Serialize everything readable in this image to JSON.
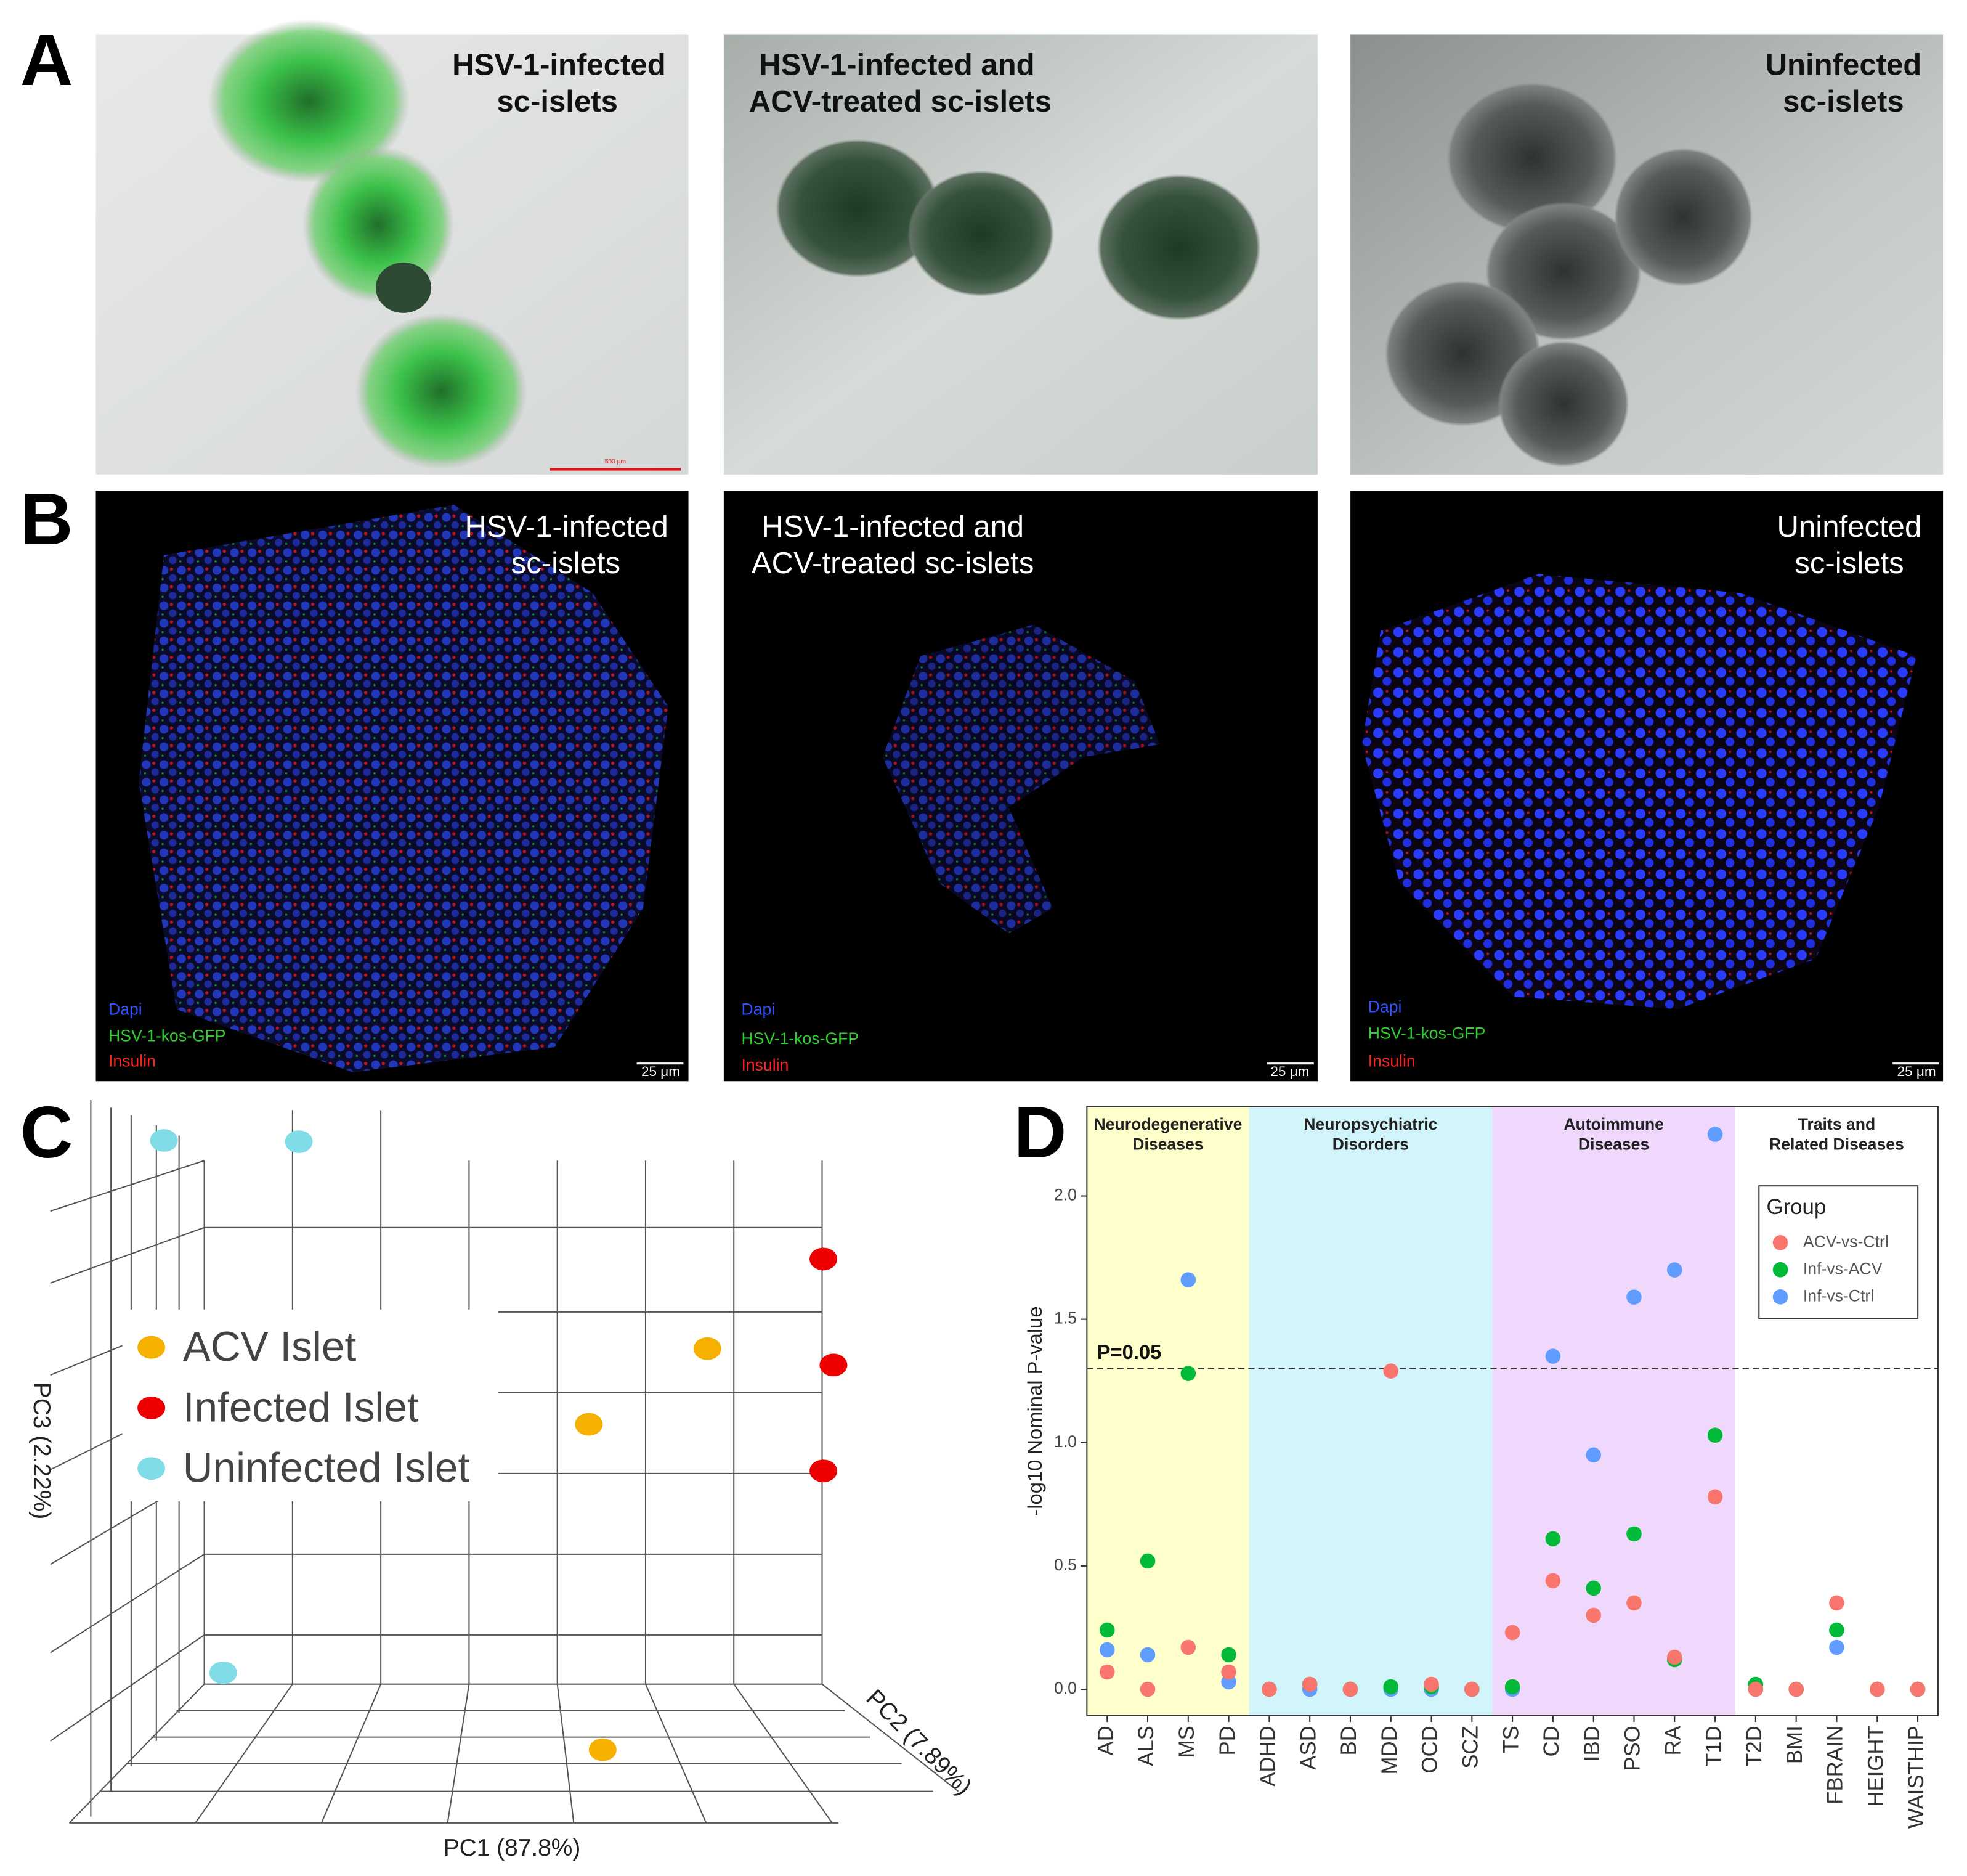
{
  "panel_a": {
    "label": "A",
    "images": [
      {
        "title": [
          "HSV-1-infected",
          "sc-islets"
        ],
        "scale_bar": "500 μm"
      },
      {
        "title": [
          "HSV-1-infected and",
          "ACV-treated sc-islets"
        ]
      },
      {
        "title": [
          "Uninfected",
          "sc-islets"
        ]
      }
    ]
  },
  "panel_b": {
    "label": "B",
    "images": [
      {
        "title": [
          "HSV-1-infected",
          "sc-islets"
        ],
        "stains": [
          "Dapi",
          "HSV-1-kos-GFP",
          "Insulin"
        ],
        "scale_bar": "25 μm"
      },
      {
        "title": [
          "HSV-1-infected and",
          "ACV-treated sc-islets"
        ],
        "stains": [
          "Dapi",
          "HSV-1-kos-GFP",
          "Insulin"
        ],
        "scale_bar": "25 μm"
      },
      {
        "title": [
          "Uninfected",
          "sc-islets"
        ],
        "stains": [
          "Dapi",
          "HSV-1-kos-GFP",
          "Insulin"
        ],
        "scale_bar": "25 μm"
      }
    ]
  },
  "panel_c": {
    "label": "C",
    "legend": [
      {
        "name": "ACV Islet",
        "color": "#f5b000"
      },
      {
        "name": "Infected Islet",
        "color": "#ee0000"
      },
      {
        "name": "Uninfected Islet",
        "color": "#80dde8"
      }
    ],
    "xlabel": "PC1 (87.8%)",
    "ylabel": "PC2 (7.89%)",
    "zlabel": "PC3 (2.22%)"
  },
  "chart_data": {
    "type": "scatter",
    "panel_label": "D",
    "ylabel": "-log10 Nominal P-value",
    "categories": [
      "AD",
      "ALS",
      "MS",
      "PD",
      "ADHD",
      "ASD",
      "BD",
      "MDD",
      "OCD",
      "SCZ",
      "TS",
      "CD",
      "IBD",
      "PSO",
      "RA",
      "T1D",
      "T2D",
      "BMI",
      "FBRAIN",
      "HEIGHT",
      "WAISTHIP"
    ],
    "groups": [
      {
        "title": [
          "Neurodegenerative",
          "Diseases"
        ],
        "categories": [
          "AD",
          "ALS",
          "MS",
          "PD"
        ],
        "color": "#ffffcc"
      },
      {
        "title": [
          "Neuropsychiatric",
          "Disorders"
        ],
        "categories": [
          "ADHD",
          "ASD",
          "BD",
          "MDD",
          "OCD",
          "SCZ"
        ],
        "color": "#d2f5fb"
      },
      {
        "title": [
          "Autoimmune",
          "Diseases"
        ],
        "categories": [
          "TS",
          "CD",
          "IBD",
          "PSO",
          "RA",
          "T1D"
        ],
        "color": "#efd8fb"
      },
      {
        "title": [
          "Traits and",
          "Related Diseases"
        ],
        "categories": [
          "T2D",
          "BMI",
          "FBRAIN",
          "HEIGHT",
          "WAISTHIP"
        ],
        "color": "#ffffff"
      }
    ],
    "legend_title": "Group",
    "series": [
      {
        "name": "ACV-vs-Ctrl",
        "color": "#f8766d",
        "values": [
          0.07,
          0.0,
          0.17,
          0.07,
          0.0,
          0.02,
          0.0,
          1.29,
          0.02,
          0.0,
          0.23,
          0.44,
          0.3,
          0.35,
          0.13,
          0.78,
          0.0,
          0.0,
          0.35,
          0.0,
          0.0
        ]
      },
      {
        "name": "Inf-vs-ACV",
        "color": "#00ba38",
        "values": [
          0.24,
          0.52,
          1.28,
          0.14,
          0.0,
          0.02,
          0.0,
          0.01,
          0.01,
          0.0,
          0.01,
          0.61,
          0.41,
          0.63,
          0.12,
          1.03,
          0.02,
          0.0,
          0.24,
          0.0,
          0.0
        ]
      },
      {
        "name": "Inf-vs-Ctrl",
        "color": "#619cff",
        "values": [
          0.16,
          0.14,
          1.66,
          0.03,
          0.0,
          0.0,
          0.0,
          0.0,
          0.0,
          0.0,
          0.0,
          1.35,
          0.95,
          1.59,
          1.7,
          2.25,
          0.0,
          0.0,
          0.17,
          0.0,
          0.0
        ]
      }
    ],
    "threshold": {
      "value": 1.3,
      "label": "P=0.05"
    },
    "ylim": [
      -0.107,
      2.363
    ],
    "yticks": [
      {
        "value": 0,
        "label": "0.0"
      },
      {
        "value": 0.5,
        "label": "0.5"
      },
      {
        "value": 1,
        "label": "1.0"
      },
      {
        "value": 1.5,
        "label": "1.5"
      },
      {
        "value": 2,
        "label": "2.0"
      }
    ]
  }
}
